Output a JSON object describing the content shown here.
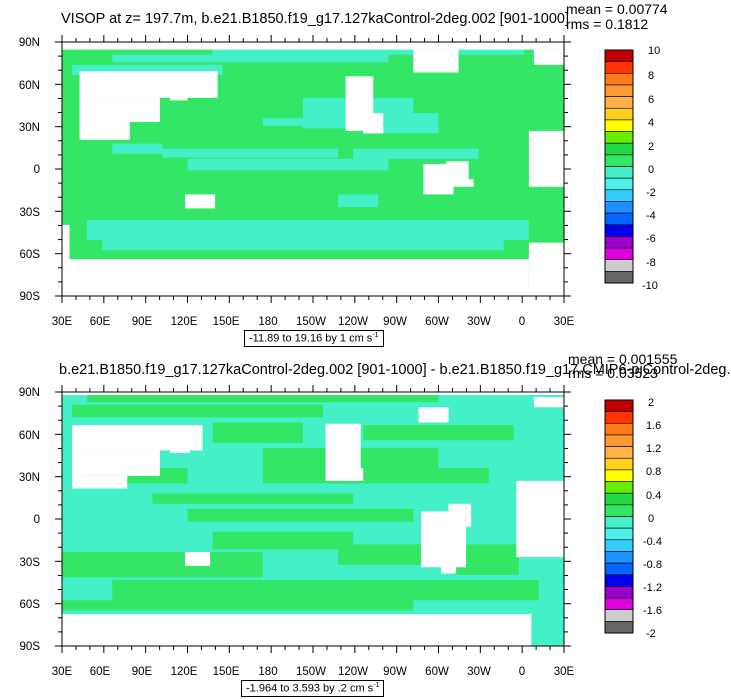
{
  "colors": {
    "ocean_main": "#33e666",
    "ocean_alt": "#44f0c8",
    "land": "#ffffff",
    "frame": "#000000"
  },
  "panels": [
    {
      "title": "VISOP at z= 197.7m, b.e21.B1850.f19_g17.127kaControl-2deg.002 [901-1000]",
      "mean_label": "mean = 0.00774",
      "rms_label": "rms = 0.1812",
      "range_label": "-11.89 to 19.16 by 1 cm s",
      "range_sup": "-1",
      "colorbar": {
        "labels": [
          "10",
          "8",
          "6",
          "4",
          "2",
          "0",
          "-2",
          "-4",
          "-6",
          "-8",
          "-10"
        ],
        "colors": [
          "#c00000",
          "#ff3300",
          "#ff7a1a",
          "#ff9933",
          "#ffb347",
          "#ffd11a",
          "#ffff00",
          "#66ee00",
          "#22d844",
          "#33e666",
          "#44f0c8",
          "#4ff0e8",
          "#33ccff",
          "#1e90ff",
          "#0066ff",
          "#0000ee",
          "#9900cc",
          "#dd00dd",
          "#cccccc",
          "#666666"
        ]
      },
      "x_ticks": [
        "30E",
        "60E",
        "90E",
        "120E",
        "150E",
        "180",
        "150W",
        "120W",
        "90W",
        "60W",
        "30W",
        "0",
        "30E"
      ],
      "y_ticks": [
        "90N",
        "60N",
        "30N",
        "0",
        "30S",
        "60S",
        "90S"
      ]
    },
    {
      "title": "b.e21.B1850.f19_g17.127kaControl-2deg.002 [901-1000] - b.e21.B1850.f19_g17.CMIP6-piControl-2deg.",
      "mean_label": "mean = 0.001555",
      "rms_label": "rms = 0.03523",
      "range_label": "-1.964 to 3.593 by .2 cm s",
      "range_sup": "-1",
      "colorbar": {
        "labels": [
          "2",
          "1.6",
          "1.2",
          "0.8",
          "0.4",
          "0",
          "-0.4",
          "-0.8",
          "-1.2",
          "-1.6",
          "-2"
        ],
        "colors": [
          "#c00000",
          "#ff3300",
          "#ff7a1a",
          "#ff9933",
          "#ffb347",
          "#ffd11a",
          "#ffff00",
          "#66ee00",
          "#22d844",
          "#33e666",
          "#44f0c8",
          "#4ff0e8",
          "#33ccff",
          "#1e90ff",
          "#0066ff",
          "#0000ee",
          "#9900cc",
          "#dd00dd",
          "#cccccc",
          "#666666"
        ]
      },
      "x_ticks": [
        "30E",
        "60E",
        "90E",
        "120E",
        "150E",
        "180",
        "150W",
        "120W",
        "90W",
        "60W",
        "30W",
        "0",
        "30E"
      ],
      "y_ticks": [
        "90N",
        "60N",
        "30N",
        "0",
        "30S",
        "60S",
        "90S"
      ]
    }
  ],
  "chart_data": [
    {
      "type": "heatmap",
      "title": "VISOP at z= 197.7m, b.e21.B1850.f19_g17.127kaControl-2deg.002 [901-1000]",
      "xlabel": "",
      "ylabel": "",
      "x_ticks": [
        "30E",
        "60E",
        "90E",
        "120E",
        "150E",
        "180",
        "150W",
        "120W",
        "90W",
        "60W",
        "30W",
        "0",
        "30E"
      ],
      "y_ticks": [
        "90N",
        "60N",
        "30N",
        "0",
        "30S",
        "60S",
        "90S"
      ],
      "xlim": [
        30,
        390
      ],
      "ylim": [
        -90,
        90
      ],
      "contour_levels": [
        -10,
        -8,
        -6,
        -4,
        -2,
        0,
        2,
        4,
        6,
        8,
        10
      ],
      "data_range": [
        -11.89,
        19.16
      ],
      "interval": 1,
      "units": "cm s-1",
      "mean": 0.00774,
      "rms": 0.1812
    },
    {
      "type": "heatmap",
      "title": "b.e21.B1850.f19_g17.127kaControl-2deg.002 [901-1000] - b.e21.B1850.f19_g17.CMIP6-piControl-2deg.",
      "xlabel": "",
      "ylabel": "",
      "x_ticks": [
        "30E",
        "60E",
        "90E",
        "120E",
        "150E",
        "180",
        "150W",
        "120W",
        "90W",
        "60W",
        "30W",
        "0",
        "30E"
      ],
      "y_ticks": [
        "90N",
        "60N",
        "30N",
        "0",
        "30S",
        "60S",
        "90S"
      ],
      "xlim": [
        30,
        390
      ],
      "ylim": [
        -90,
        90
      ],
      "contour_levels": [
        -2,
        -1.6,
        -1.2,
        -0.8,
        -0.4,
        0,
        0.4,
        0.8,
        1.2,
        1.6,
        2
      ],
      "data_range": [
        -1.964,
        3.593
      ],
      "interval": 0.2,
      "units": "cm s-1",
      "mean": 0.001555,
      "rms": 0.03523
    }
  ]
}
